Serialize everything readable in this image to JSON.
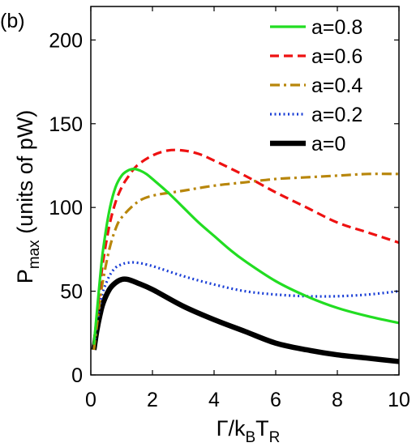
{
  "chart_data": {
    "type": "line",
    "panel_label": "(b)",
    "xlabel": {
      "main": "Γ/k",
      "sub1": "B",
      "mid": "T",
      "sub2": "R"
    },
    "ylabel": {
      "main": "P",
      "sub": "max",
      "rest": " (units of pW)"
    },
    "xlim": [
      0,
      10
    ],
    "ylim": [
      0,
      220
    ],
    "xticks": [
      0,
      2,
      4,
      6,
      8,
      10
    ],
    "yticks": [
      0,
      50,
      100,
      150,
      200
    ],
    "grid": false,
    "legend_position": "top-right",
    "series": [
      {
        "name": "a=0.8",
        "color": "#22dd22",
        "dash": "solid",
        "x": [
          0.1,
          0.2,
          0.3,
          0.4,
          0.6,
          0.8,
          1.0,
          1.2,
          1.4,
          1.6,
          1.8,
          2.0,
          2.5,
          3.0,
          3.5,
          4.0,
          4.5,
          5.0,
          6.0,
          7.0,
          8.0,
          9.0,
          10.0
        ],
        "y": [
          18,
          38,
          58,
          75,
          98,
          112,
          119,
          122,
          123,
          122,
          120,
          117,
          109,
          100,
          91,
          83,
          75,
          68,
          56,
          47,
          40,
          35,
          31
        ]
      },
      {
        "name": "a=0.6",
        "color": "#ee1111",
        "dash": "dashed",
        "x": [
          0.1,
          0.2,
          0.3,
          0.4,
          0.6,
          0.8,
          1.0,
          1.2,
          1.5,
          2.0,
          2.5,
          3.0,
          3.5,
          4.0,
          5.0,
          6.0,
          7.0,
          8.0,
          9.0,
          10.0
        ],
        "y": [
          18,
          36,
          53,
          68,
          89,
          103,
          112,
          118,
          125,
          131,
          134,
          134,
          132,
          128,
          119,
          109,
          100,
          91,
          85,
          79
        ]
      },
      {
        "name": "a=0.4",
        "color": "#b8860b",
        "dash": "dashdot",
        "x": [
          0.1,
          0.2,
          0.3,
          0.4,
          0.6,
          0.8,
          1.0,
          1.5,
          2.0,
          3.0,
          4.0,
          5.0,
          6.0,
          7.0,
          8.0,
          9.0,
          10.0
        ],
        "y": [
          15,
          30,
          45,
          57,
          75,
          87,
          94,
          103,
          107,
          110,
          113,
          115,
          117,
          118,
          119,
          120,
          120
        ]
      },
      {
        "name": "a=0.2",
        "color": "#1a3fd6",
        "dash": "dotted",
        "x": [
          0.1,
          0.2,
          0.3,
          0.4,
          0.6,
          0.8,
          1.0,
          1.2,
          1.5,
          2.0,
          3.0,
          4.0,
          5.0,
          6.0,
          7.0,
          8.0,
          9.0,
          10.0
        ],
        "y": [
          16,
          30,
          42,
          50,
          59,
          64,
          66,
          67,
          67,
          65,
          59,
          54,
          50,
          48,
          47,
          47,
          48,
          50
        ]
      },
      {
        "name": "a=0",
        "color": "#000000",
        "dash": "solid-thick",
        "x": [
          0.1,
          0.2,
          0.3,
          0.4,
          0.6,
          0.8,
          1.0,
          1.2,
          1.5,
          2.0,
          3.0,
          4.0,
          5.0,
          6.0,
          7.0,
          8.0,
          9.0,
          10.0
        ],
        "y": [
          15,
          27,
          36,
          43,
          51,
          55,
          57,
          57,
          55,
          51,
          41,
          33,
          26,
          19,
          15,
          12,
          10,
          8
        ]
      }
    ]
  }
}
